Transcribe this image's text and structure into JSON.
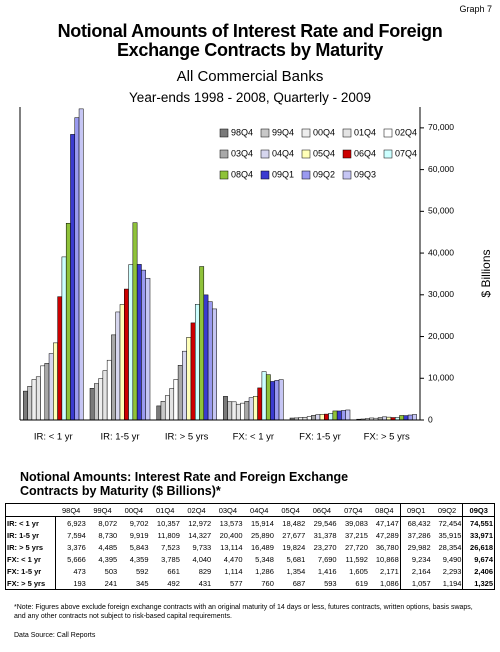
{
  "header": {
    "graph_number": "Graph 7",
    "title": "Notional Amounts of Interest Rate and Foreign Exchange Contracts by Maturity",
    "subtitle": "All Commercial Banks",
    "period": "Year-ends 1998 - 2008, Quarterly - 2009"
  },
  "chart_data": {
    "type": "bar",
    "y_label": "$ Billions",
    "categories": [
      "IR: < 1 yr",
      "IR: 1-5 yr",
      "IR: > 5 yrs",
      "FX: < 1 yr",
      "FX: 1-5 yr",
      "FX: > 5 yrs"
    ],
    "ylim": [
      0,
      75000
    ],
    "yticks": [
      0,
      {
        "value": 10000,
        "label": "10,000"
      },
      {
        "value": 20000,
        "label": "20,000"
      },
      {
        "value": 30000,
        "label": "30,000"
      },
      {
        "value": 40000,
        "label": "40,000"
      },
      {
        "value": 50000,
        "label": "50,000"
      },
      {
        "value": 60000,
        "label": "60,000"
      },
      {
        "value": 70000,
        "label": "70,000"
      }
    ],
    "series": [
      {
        "name": "98Q4",
        "color": "#7a7a7a",
        "values": [
          6923,
          7594,
          3376,
          5666,
          473,
          193
        ],
        "value_labels": [
          "6,923",
          "7,594",
          "3,376",
          "5,666",
          "473",
          "193"
        ]
      },
      {
        "name": "99Q4",
        "color": "#c8c8c8",
        "values": [
          8072,
          8730,
          4485,
          4395,
          503,
          241
        ],
        "value_labels": [
          "8,072",
          "8,730",
          "4,485",
          "4,395",
          "503",
          "241"
        ]
      },
      {
        "name": "00Q4",
        "color": "#eeeeee",
        "values": [
          9702,
          9919,
          5843,
          4359,
          592,
          345
        ],
        "value_labels": [
          "9,702",
          "9,919",
          "5,843",
          "4,359",
          "592",
          "345"
        ]
      },
      {
        "name": "01Q4",
        "color": "#e4e4e4",
        "values": [
          10357,
          11809,
          7523,
          3785,
          661,
          492
        ],
        "value_labels": [
          "10,357",
          "11,809",
          "7,523",
          "3,785",
          "661",
          "492"
        ]
      },
      {
        "name": "02Q4",
        "color": "#ffffff",
        "values": [
          12972,
          14327,
          9733,
          4040,
          829,
          431
        ],
        "value_labels": [
          "12,972",
          "14,327",
          "9,733",
          "4,040",
          "829",
          "431"
        ]
      },
      {
        "name": "03Q4",
        "color": "#a8a8a8",
        "values": [
          13573,
          20400,
          13114,
          4470,
          1114,
          577
        ],
        "value_labels": [
          "13,573",
          "20,400",
          "13,114",
          "4,470",
          "1,114",
          "577"
        ]
      },
      {
        "name": "04Q4",
        "color": "#d6d6ee",
        "values": [
          15914,
          25890,
          16489,
          5348,
          1286,
          760
        ],
        "value_labels": [
          "15,914",
          "25,890",
          "16,489",
          "5,348",
          "1,286",
          "760"
        ]
      },
      {
        "name": "05Q4",
        "color": "#ffffb8",
        "values": [
          18482,
          27677,
          19824,
          5681,
          1354,
          687
        ],
        "value_labels": [
          "18,482",
          "27,677",
          "19,824",
          "5,681",
          "1,354",
          "687"
        ]
      },
      {
        "name": "06Q4",
        "color": "#cc0000",
        "values": [
          29546,
          31378,
          23270,
          7690,
          1416,
          593
        ],
        "value_labels": [
          "29,546",
          "31,378",
          "23,270",
          "7,690",
          "1,416",
          "593"
        ]
      },
      {
        "name": "07Q4",
        "color": "#ccffff",
        "values": [
          39083,
          37215,
          27720,
          11592,
          1605,
          619
        ],
        "value_labels": [
          "39,083",
          "37,215",
          "27,720",
          "11,592",
          "1,605",
          "619"
        ]
      },
      {
        "name": "08Q4",
        "color": "#8fc23a",
        "values": [
          47147,
          47289,
          36780,
          10868,
          2171,
          1086
        ],
        "value_labels": [
          "47,147",
          "47,289",
          "36,780",
          "10,868",
          "2,171",
          "1,086"
        ]
      },
      {
        "name": "09Q1",
        "color": "#3b3bd0",
        "values": [
          68432,
          37286,
          29982,
          9234,
          2164,
          1057
        ],
        "value_labels": [
          "68,432",
          "37,286",
          "29,982",
          "9,234",
          "2,164",
          "1,057"
        ]
      },
      {
        "name": "09Q2",
        "color": "#9a9af0",
        "values": [
          72454,
          35915,
          28354,
          9490,
          2293,
          1194
        ],
        "value_labels": [
          "72,454",
          "35,915",
          "28,354",
          "9,490",
          "2,293",
          "1,194"
        ]
      },
      {
        "name": "09Q3",
        "color": "#c6c6f4",
        "values": [
          74551,
          33971,
          26618,
          9674,
          2406,
          1325
        ],
        "value_labels": [
          "74,551",
          "33,971",
          "26,618",
          "9,674",
          "2,406",
          "1,325"
        ]
      }
    ]
  },
  "table": {
    "title": "Notional Amounts:  Interest Rate and Foreign Exchange Contracts by Maturity ($ Billions)*"
  },
  "footer": {
    "note": "*Note:  Figures above exclude foreign exchange contracts with an original maturity of 14 days or less, futures contracts, written options, basis swaps, and any other contracts not subject to risk-based capital requirements.",
    "source": "Data Source:  Call Reports"
  }
}
